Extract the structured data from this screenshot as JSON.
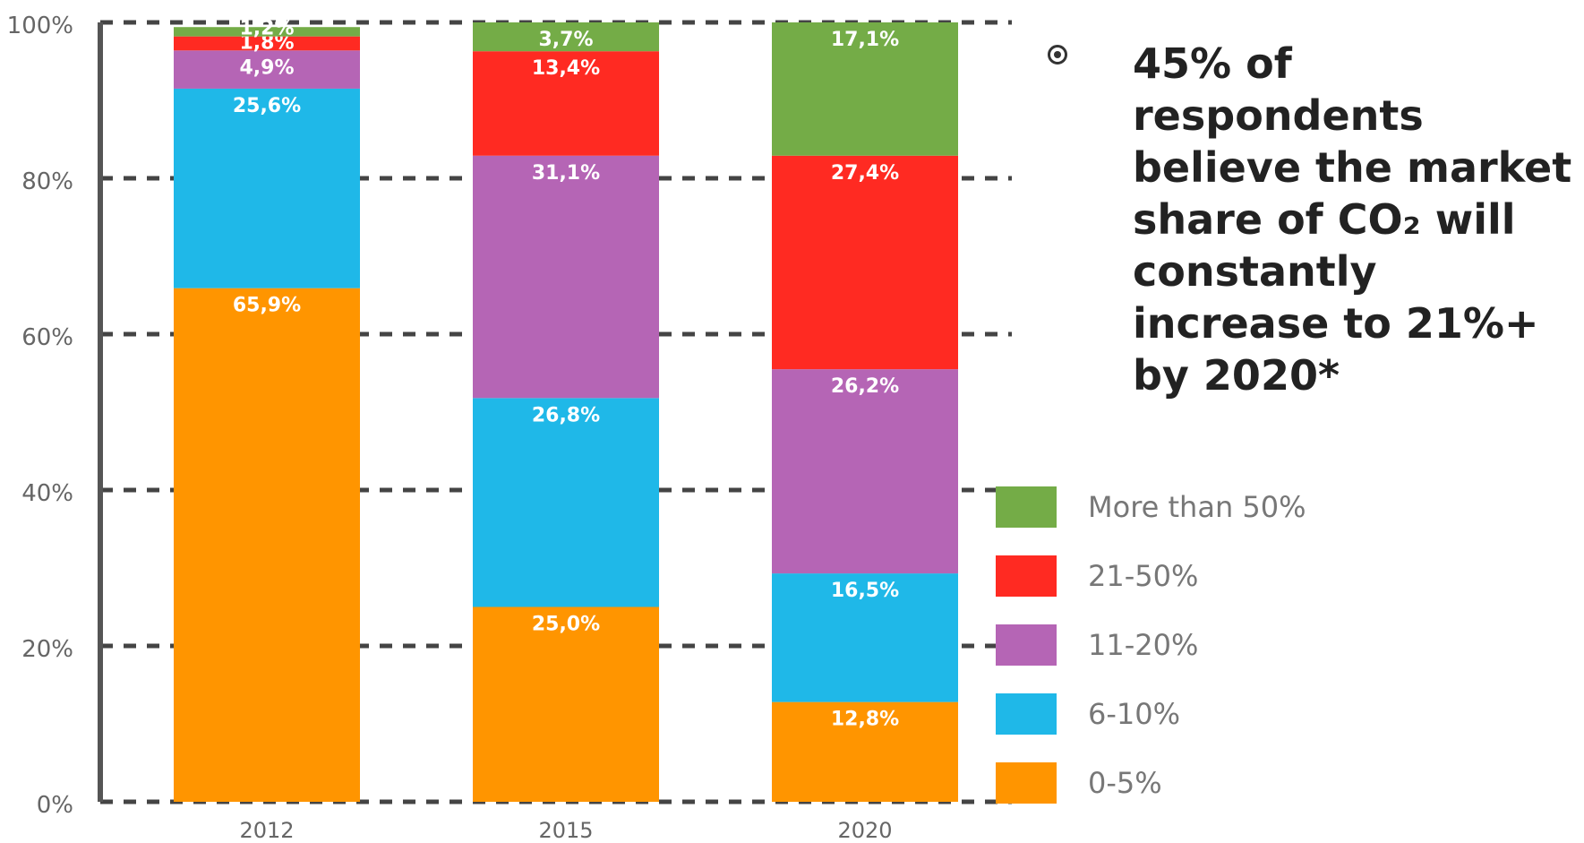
{
  "bullet": {
    "text": "45% of respondents believe the market share of CO₂ will constantly increase to 21%+ by 2020*"
  },
  "chart_data": {
    "type": "bar",
    "stacked": true,
    "categories": [
      "2012",
      "2015",
      "2020"
    ],
    "y_tick_labels": [
      "0%",
      "20%",
      "40%",
      "60%",
      "80%",
      "100%"
    ],
    "ylim": [
      0,
      100
    ],
    "grid": "dashed horizontal",
    "legend_position": "right",
    "series": [
      {
        "name": "0-5%",
        "color": "#ff9500",
        "values": [
          65.9,
          25.0,
          12.8
        ],
        "labels": [
          "65,9%",
          "25,0%",
          "12,8%"
        ]
      },
      {
        "name": "6-10%",
        "color": "#1fb8e8",
        "values": [
          25.6,
          26.8,
          16.5
        ],
        "labels": [
          "25,6%",
          "26,8%",
          "16,5%"
        ]
      },
      {
        "name": "11-20%",
        "color": "#b565b5",
        "values": [
          4.9,
          31.1,
          26.2
        ],
        "labels": [
          "4,9%",
          "31,1%",
          "26,2%"
        ]
      },
      {
        "name": "21-50%",
        "color": "#ff2a22",
        "values": [
          1.8,
          13.4,
          27.4
        ],
        "labels": [
          "1,8%",
          "13,4%",
          "27,4%"
        ]
      },
      {
        "name": "More than 50%",
        "color": "#74ac47",
        "values": [
          1.2,
          3.7,
          17.1
        ],
        "labels": [
          "1,2%",
          "3,7%",
          "17,1%"
        ]
      }
    ]
  }
}
